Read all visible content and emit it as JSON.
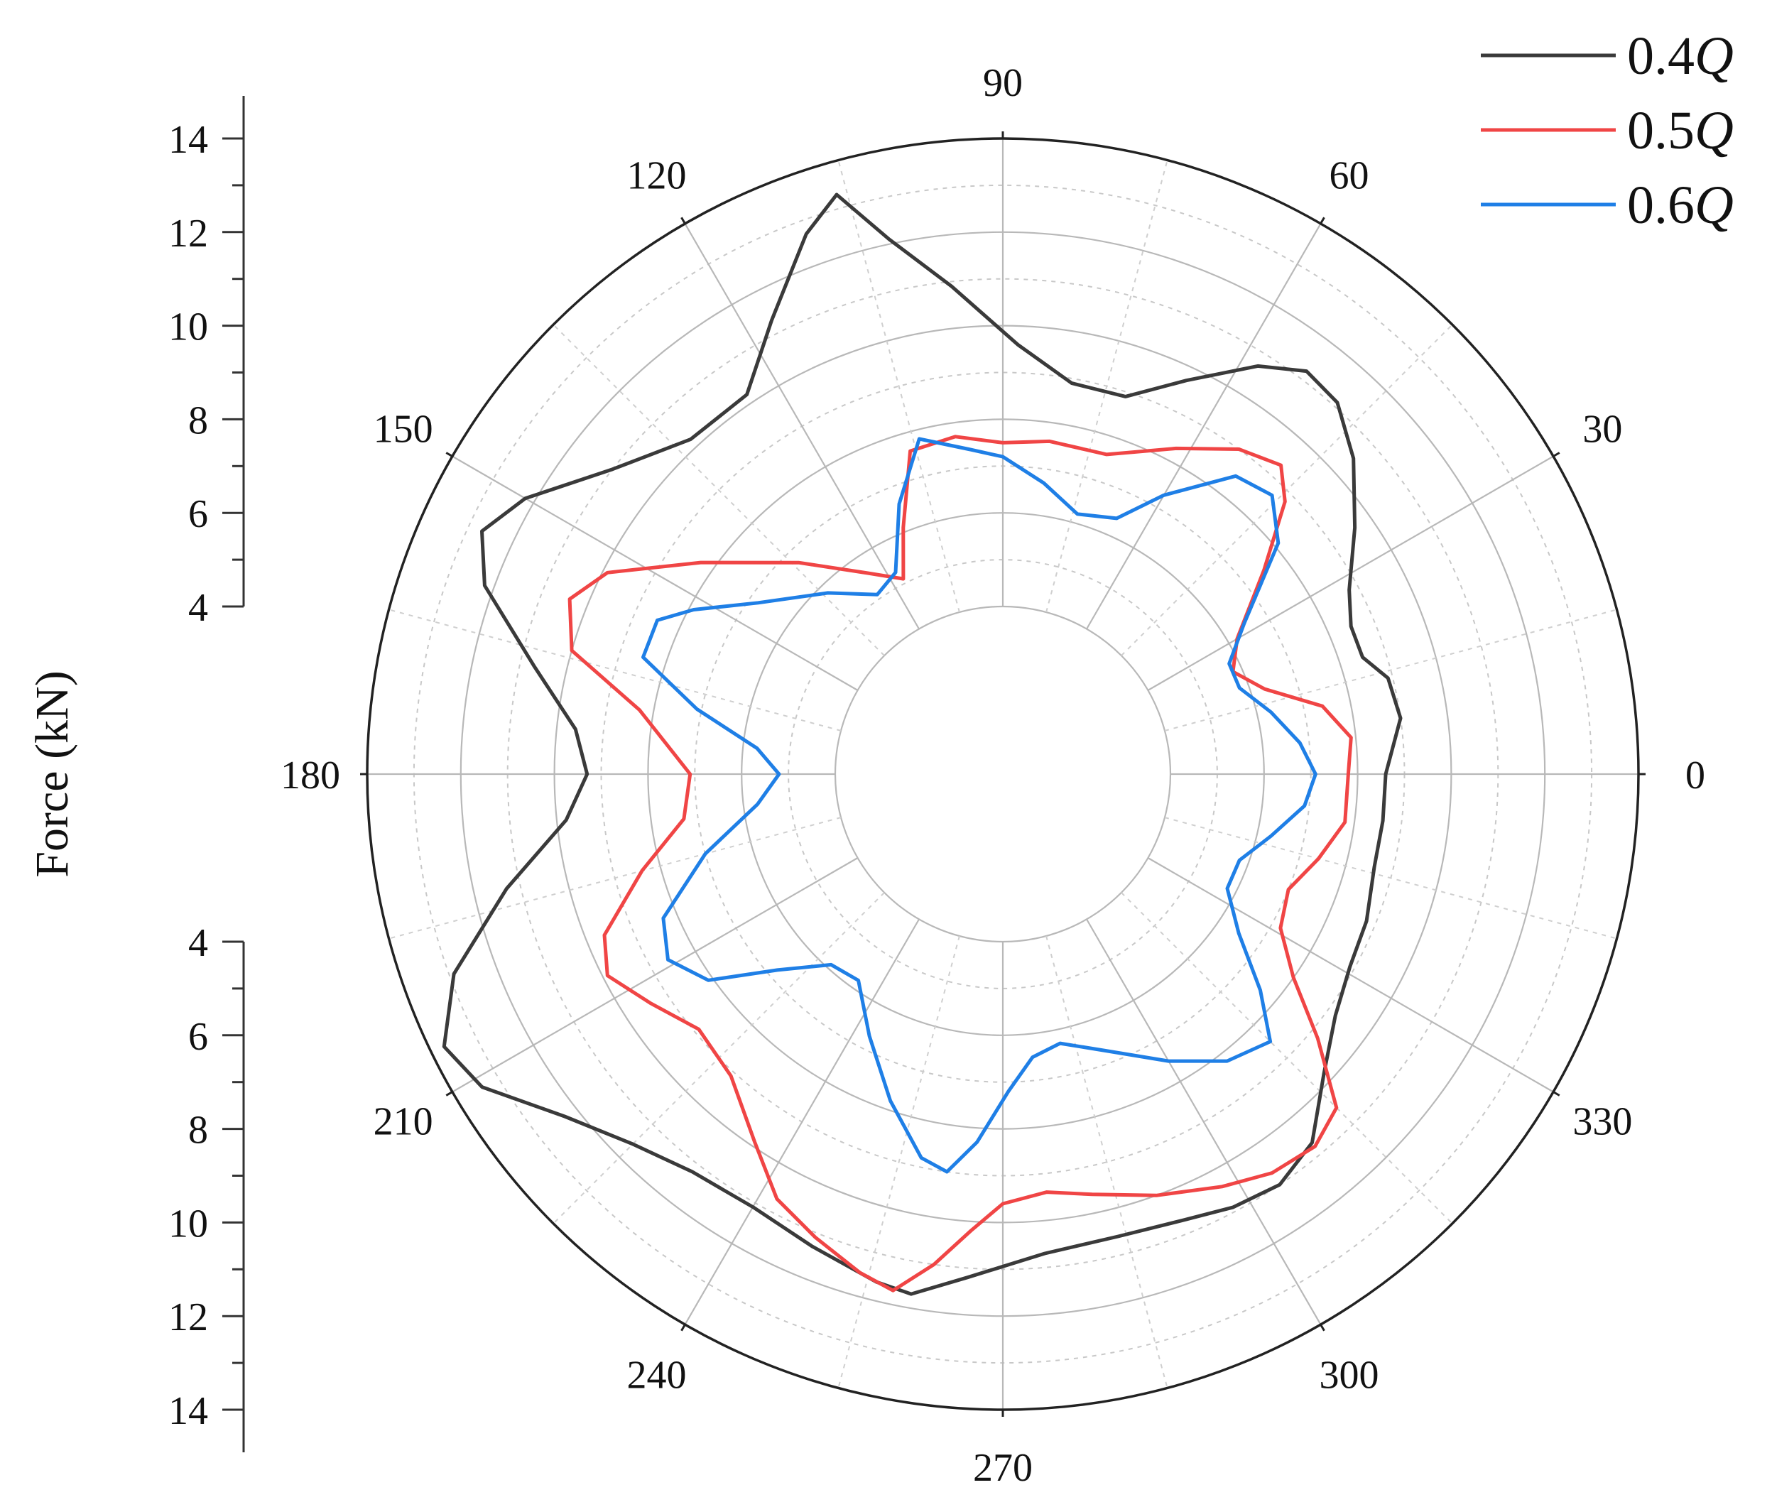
{
  "chart_data": {
    "type": "polar-line",
    "ylabel": "Force (kN)",
    "radial_range": [
      4,
      14
    ],
    "radial_ticks": [
      4,
      6,
      8,
      10,
      12,
      14
    ],
    "radial_tick_labels": [
      "4",
      "6",
      "8",
      "10",
      "12",
      "14"
    ],
    "angular_ticks": [
      0,
      30,
      60,
      90,
      120,
      150,
      180,
      210,
      240,
      270,
      300,
      330
    ],
    "angular_tick_labels": [
      "0",
      "30",
      "60",
      "90",
      "120",
      "150",
      "180",
      "210",
      "240",
      "270",
      "300",
      "330"
    ],
    "grid": true,
    "legend_position": "top-right",
    "series": [
      {
        "name": "0.4Q",
        "color": "#3a3a3a",
        "points": [
          [
            0,
            8.6
          ],
          [
            8,
            9.0
          ],
          [
            14,
            8.9
          ],
          [
            18,
            8.5
          ],
          [
            23,
            8.5
          ],
          [
            28,
            8.8
          ],
          [
            35,
            9.6
          ],
          [
            42,
            10.5
          ],
          [
            48,
            11.1
          ],
          [
            53,
            11.2
          ],
          [
            58,
            10.7
          ],
          [
            65,
            9.7
          ],
          [
            72,
            8.9
          ],
          [
            80,
            8.9
          ],
          [
            88,
            9.6
          ],
          [
            96,
            10.9
          ],
          [
            102,
            12.1
          ],
          [
            106,
            13.3
          ],
          [
            110,
            12.7
          ],
          [
            117,
            11.3
          ],
          [
            124,
            10.2
          ],
          [
            133,
            10.2
          ],
          [
            142,
            11.0
          ],
          [
            150,
            12.2
          ],
          [
            155,
            12.7
          ],
          [
            160,
            12.2
          ],
          [
            167,
            10.7
          ],
          [
            174,
            9.6
          ],
          [
            180,
            9.3
          ],
          [
            186,
            9.8
          ],
          [
            193,
            11.3
          ],
          [
            200,
            12.9
          ],
          [
            206,
            13.7
          ],
          [
            211,
            13.4
          ],
          [
            218,
            12.3
          ],
          [
            225,
            11.6
          ],
          [
            232,
            11.2
          ],
          [
            240,
            11.1
          ],
          [
            248,
            11.3
          ],
          [
            256,
            11.6
          ],
          [
            260,
            11.7
          ],
          [
            266,
            11.2
          ],
          [
            275,
            10.7
          ],
          [
            284,
            10.6
          ],
          [
            292,
            10.7
          ],
          [
            298,
            10.9
          ],
          [
            304,
            11.0
          ],
          [
            310,
            10.7
          ],
          [
            317,
            9.8
          ],
          [
            324,
            9.2
          ],
          [
            331,
            8.9
          ],
          [
            338,
            8.8
          ],
          [
            346,
            8.6
          ],
          [
            353,
            8.6
          ]
        ]
      },
      {
        "name": "0.5Q",
        "color": "#f04545",
        "points": [
          [
            0,
            7.8
          ],
          [
            6,
            7.9
          ],
          [
            12,
            7.4
          ],
          [
            18,
            6.3
          ],
          [
            24,
            5.8
          ],
          [
            30,
            6.2
          ],
          [
            38,
            7.5
          ],
          [
            44,
            8.8
          ],
          [
            48,
            9.3
          ],
          [
            54,
            9.0
          ],
          [
            62,
            8.3
          ],
          [
            72,
            7.6
          ],
          [
            82,
            7.6
          ],
          [
            90,
            7.5
          ],
          [
            98,
            7.7
          ],
          [
            106,
            7.6
          ],
          [
            112,
            6.1
          ],
          [
            117,
            5.1
          ],
          [
            124,
            5.6
          ],
          [
            134,
            6.7
          ],
          [
            145,
            8.3
          ],
          [
            153,
            9.9
          ],
          [
            158,
            10.4
          ],
          [
            164,
            10.0
          ],
          [
            170,
            8.3
          ],
          [
            180,
            7.1
          ],
          [
            188,
            7.3
          ],
          [
            195,
            8.4
          ],
          [
            202,
            9.6
          ],
          [
            207,
            9.9
          ],
          [
            213,
            9.4
          ],
          [
            220,
            8.9
          ],
          [
            228,
            9.1
          ],
          [
            236,
            9.9
          ],
          [
            242,
            10.7
          ],
          [
            248,
            11.1
          ],
          [
            254,
            11.5
          ],
          [
            258,
            11.7
          ],
          [
            262,
            11.0
          ],
          [
            266,
            10.2
          ],
          [
            270,
            9.6
          ],
          [
            276,
            9.4
          ],
          [
            282,
            9.6
          ],
          [
            290,
            10.0
          ],
          [
            298,
            10.4
          ],
          [
            304,
            10.7
          ],
          [
            310,
            10.8
          ],
          [
            315,
            10.5
          ],
          [
            320,
            9.2
          ],
          [
            325,
            8.0
          ],
          [
            331,
            7.2
          ],
          [
            338,
            7.0
          ],
          [
            345,
            7.4
          ],
          [
            352,
            7.8
          ]
        ]
      },
      {
        "name": "0.6Q",
        "color": "#1f7fe6",
        "points": [
          [
            0,
            7.1
          ],
          [
            6,
            6.8
          ],
          [
            13,
            6.3
          ],
          [
            20,
            5.8
          ],
          [
            26,
            5.8
          ],
          [
            32,
            6.5
          ],
          [
            40,
            8.1
          ],
          [
            46,
            8.7
          ],
          [
            52,
            8.5
          ],
          [
            60,
            7.3
          ],
          [
            66,
            6.4
          ],
          [
            74,
            6.2
          ],
          [
            82,
            6.7
          ],
          [
            90,
            7.2
          ],
          [
            96,
            7.4
          ],
          [
            104,
            7.8
          ],
          [
            111,
            6.6
          ],
          [
            118,
            5.3
          ],
          [
            125,
            5.1
          ],
          [
            134,
            5.8
          ],
          [
            145,
            6.8
          ],
          [
            152,
            7.9
          ],
          [
            156,
            8.5
          ],
          [
            162,
            8.5
          ],
          [
            168,
            7.1
          ],
          [
            174,
            5.7
          ],
          [
            180,
            5.2
          ],
          [
            187,
            5.7
          ],
          [
            195,
            7.0
          ],
          [
            203,
            8.3
          ],
          [
            209,
            8.6
          ],
          [
            215,
            8.1
          ],
          [
            221,
            6.8
          ],
          [
            228,
            5.9
          ],
          [
            235,
            5.8
          ],
          [
            243,
            6.7
          ],
          [
            251,
            7.8
          ],
          [
            258,
            8.8
          ],
          [
            262,
            9.0
          ],
          [
            266,
            8.3
          ],
          [
            271,
            7.2
          ],
          [
            276,
            6.5
          ],
          [
            282,
            6.3
          ],
          [
            290,
            6.7
          ],
          [
            300,
            7.5
          ],
          [
            308,
            8.2
          ],
          [
            315,
            8.5
          ],
          [
            320,
            7.6
          ],
          [
            326,
            6.5
          ],
          [
            333,
            5.8
          ],
          [
            340,
            5.8
          ],
          [
            347,
            6.3
          ],
          [
            354,
            6.9
          ]
        ]
      }
    ]
  }
}
